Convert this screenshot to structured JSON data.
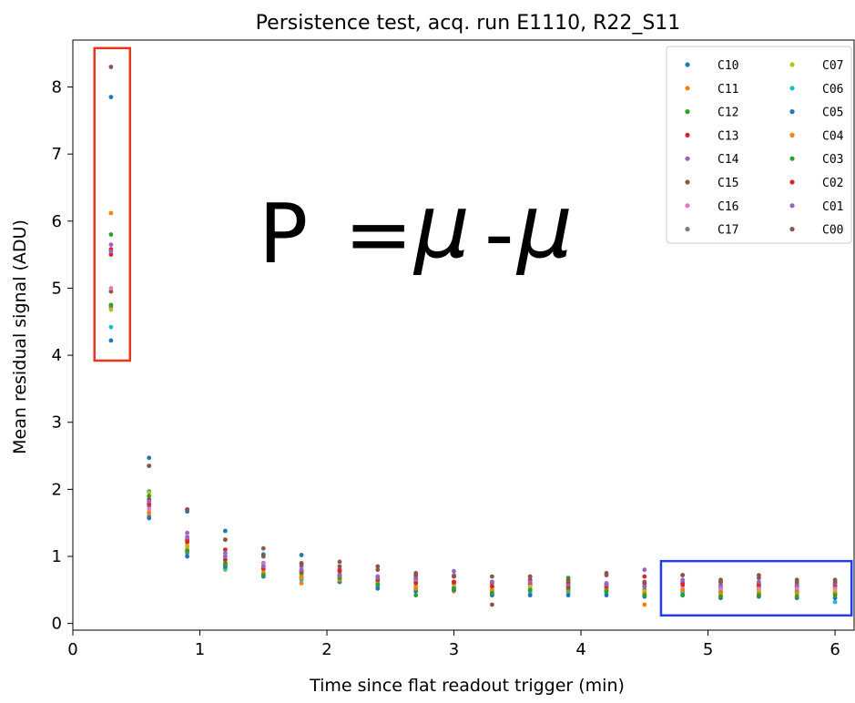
{
  "chart_data": {
    "type": "scatter",
    "title": "Persistence test, acq. run E1110, R22_S11",
    "xlabel": "Time since flat readout trigger (min)",
    "ylabel": "Mean residual signal (ADU)",
    "xlim": [
      0,
      6.15
    ],
    "ylim": [
      -0.1,
      8.7
    ],
    "xticks": [
      "0",
      "1",
      "2",
      "3",
      "4",
      "5",
      "6"
    ],
    "yticks": [
      "0",
      "1",
      "2",
      "3",
      "4",
      "5",
      "6",
      "7",
      "8"
    ],
    "grid": false,
    "legend_position": "top-right",
    "x": [
      0.3,
      0.6,
      0.9,
      1.2,
      1.5,
      1.8,
      2.1,
      2.4,
      2.7,
      3.0,
      3.3,
      3.6,
      3.9,
      4.2,
      4.5,
      4.8,
      5.1,
      5.4,
      5.7,
      6.0
    ],
    "series": [
      {
        "name": "C10",
        "color": "#1f77b4",
        "values": [
          7.85,
          2.47,
          1.67,
          1.38,
          1.03,
          1.02,
          0.72,
          0.62,
          0.62,
          0.62,
          0.55,
          0.58,
          0.55,
          0.53,
          0.55,
          0.6,
          0.52,
          0.55,
          0.55,
          0.52
        ]
      },
      {
        "name": "C11",
        "color": "#ff7f0e",
        "values": [
          6.12,
          1.8,
          1.2,
          0.9,
          0.8,
          0.6,
          0.65,
          0.55,
          0.5,
          0.48,
          0.42,
          0.5,
          0.5,
          0.48,
          0.28,
          0.5,
          0.45,
          0.45,
          0.5,
          0.45
        ]
      },
      {
        "name": "C12",
        "color": "#2ca02c",
        "values": [
          5.8,
          1.97,
          1.15,
          0.9,
          0.75,
          0.75,
          0.7,
          0.6,
          0.55,
          0.55,
          0.5,
          0.55,
          0.68,
          0.52,
          0.5,
          0.5,
          0.47,
          0.5,
          0.47,
          0.47
        ]
      },
      {
        "name": "C13",
        "color": "#d62728",
        "values": [
          5.58,
          1.85,
          1.25,
          1.1,
          0.85,
          0.75,
          0.8,
          0.7,
          0.65,
          0.6,
          0.6,
          0.6,
          0.6,
          0.58,
          0.7,
          0.6,
          0.55,
          0.55,
          0.55,
          0.55
        ]
      },
      {
        "name": "C14",
        "color": "#9467bd",
        "values": [
          5.65,
          1.75,
          1.35,
          1.05,
          0.9,
          0.85,
          0.72,
          0.7,
          0.7,
          0.78,
          0.62,
          0.62,
          0.58,
          0.6,
          0.8,
          0.62,
          0.55,
          0.6,
          0.58,
          0.58
        ]
      },
      {
        "name": "C15",
        "color": "#8c564b",
        "values": [
          4.95,
          2.35,
          1.7,
          1.25,
          1.12,
          0.9,
          0.92,
          0.85,
          0.75,
          0.7,
          0.7,
          0.7,
          0.65,
          0.75,
          0.6,
          0.72,
          0.65,
          0.72,
          0.65,
          0.65
        ]
      },
      {
        "name": "C16",
        "color": "#e377c2",
        "values": [
          5.0,
          1.7,
          1.3,
          1.0,
          0.88,
          0.8,
          0.75,
          0.65,
          0.62,
          0.62,
          0.55,
          0.55,
          0.55,
          0.55,
          0.58,
          0.55,
          0.52,
          0.52,
          0.52,
          0.52
        ]
      },
      {
        "name": "C17",
        "color": "#7f7f7f",
        "values": [
          4.72,
          1.6,
          1.05,
          0.85,
          0.72,
          0.7,
          0.65,
          0.58,
          0.52,
          0.52,
          0.48,
          0.48,
          0.48,
          0.48,
          0.45,
          0.48,
          0.42,
          0.45,
          0.45,
          0.45
        ]
      },
      {
        "name": "C07",
        "color": "#bcbd22",
        "values": [
          4.68,
          1.95,
          1.15,
          0.8,
          0.72,
          0.72,
          0.68,
          0.6,
          0.55,
          0.55,
          0.5,
          0.55,
          0.55,
          0.5,
          0.48,
          0.5,
          0.45,
          0.48,
          0.6,
          0.48
        ]
      },
      {
        "name": "C06",
        "color": "#17becf",
        "values": [
          4.42,
          1.65,
          1.1,
          0.82,
          0.75,
          0.65,
          0.62,
          0.55,
          0.5,
          0.5,
          0.45,
          0.45,
          0.45,
          0.45,
          0.42,
          0.45,
          0.4,
          0.42,
          0.42,
          0.32
        ]
      },
      {
        "name": "C05",
        "color": "#1f77b4",
        "values": [
          4.22,
          1.57,
          1.0,
          0.85,
          0.7,
          0.68,
          0.62,
          0.52,
          0.48,
          0.5,
          0.42,
          0.42,
          0.42,
          0.42,
          0.4,
          0.42,
          0.38,
          0.4,
          0.38,
          0.38
        ]
      },
      {
        "name": "C04",
        "color": "#ff7f0e",
        "values": [
          4.75,
          1.65,
          1.1,
          0.88,
          0.75,
          0.68,
          0.65,
          0.58,
          0.52,
          0.52,
          0.48,
          0.5,
          0.5,
          0.5,
          0.45,
          0.5,
          0.45,
          0.45,
          0.45,
          0.45
        ]
      },
      {
        "name": "C03",
        "color": "#2ca02c",
        "values": [
          4.75,
          1.9,
          1.08,
          0.88,
          0.72,
          0.75,
          0.68,
          0.58,
          0.42,
          0.52,
          0.45,
          0.5,
          0.52,
          0.48,
          0.42,
          0.42,
          0.4,
          0.42,
          0.4,
          0.42
        ]
      },
      {
        "name": "C02",
        "color": "#d62728",
        "values": [
          5.5,
          1.78,
          1.22,
          0.95,
          0.82,
          0.78,
          0.78,
          0.65,
          0.6,
          0.62,
          0.55,
          0.65,
          0.55,
          0.55,
          0.6,
          0.58,
          0.62,
          0.58,
          0.58,
          0.58
        ]
      },
      {
        "name": "C01",
        "color": "#9467bd",
        "values": [
          5.55,
          1.82,
          1.28,
          1.0,
          0.85,
          0.8,
          0.72,
          0.68,
          0.68,
          0.72,
          0.62,
          0.62,
          0.58,
          0.58,
          0.55,
          0.65,
          0.58,
          0.62,
          0.58,
          0.6
        ]
      },
      {
        "name": "C00",
        "color": "#8c564b",
        "values": [
          8.3,
          2.35,
          1.7,
          1.25,
          1.0,
          0.88,
          0.85,
          0.8,
          0.72,
          0.7,
          0.28,
          0.7,
          0.62,
          0.72,
          0.62,
          0.72,
          0.62,
          0.68,
          0.62,
          0.62
        ]
      }
    ],
    "annotation": {
      "label_p": "P",
      "label_eq": "=",
      "label_minus": "-",
      "symbol_mu": "μ",
      "color_first": "#ff2a00",
      "color_second": "#1f3cff",
      "box_early": {
        "x": [
          0.17,
          0.45
        ],
        "y": [
          3.92,
          8.58
        ],
        "color": "#e8361c"
      },
      "box_late": {
        "x": [
          4.63,
          6.13
        ],
        "y": [
          0.12,
          0.93
        ],
        "color": "#1f3cff"
      }
    }
  }
}
